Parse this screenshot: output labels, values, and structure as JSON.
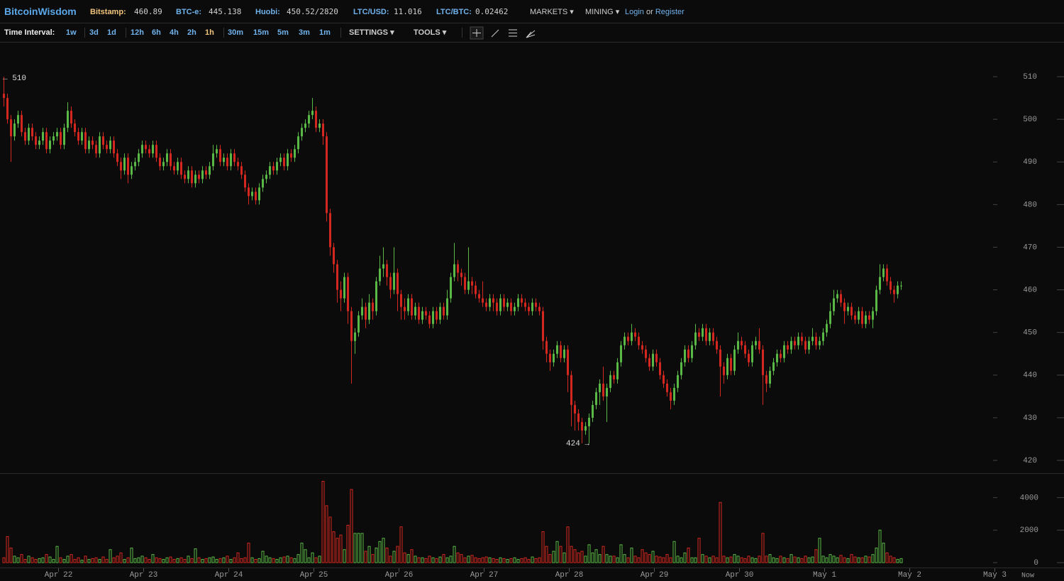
{
  "header": {
    "brand": "BitcoinWisdom",
    "tickers": [
      {
        "label": "Bitstamp:",
        "value": "460.89"
      },
      {
        "label": "BTC-e:",
        "value": "445.138"
      },
      {
        "label": "Huobi:",
        "value": "450.52/2820"
      },
      {
        "label": "LTC/USD:",
        "value": "11.016"
      },
      {
        "label": "LTC/BTC:",
        "value": "0.02462"
      }
    ],
    "menus": [
      "MARKETS",
      "MINING"
    ],
    "login": "Login",
    "or": "or",
    "register": "Register"
  },
  "toolbar": {
    "label": "Time Interval:",
    "intervals": [
      "1w",
      "3d",
      "1d",
      "12h",
      "6h",
      "4h",
      "2h",
      "1h",
      "30m",
      "15m",
      "5m",
      "3m",
      "1m"
    ],
    "active_interval": "1h",
    "settings": "SETTINGS",
    "tools": "TOOLS"
  },
  "chart_data": {
    "type": "candlestick",
    "up_color": "#5ab846",
    "down_color": "#d4271f",
    "high_marker": "← 510",
    "low_marker": "424 →",
    "now_label": "Now",
    "xlim": [
      -1,
      299
    ],
    "xticks": [
      {
        "value": 15.5,
        "label": "Apr 22"
      },
      {
        "value": 39.5,
        "label": "Apr 23"
      },
      {
        "value": 63.5,
        "label": "Apr 24"
      },
      {
        "value": 87.5,
        "label": "Apr 25"
      },
      {
        "value": 111.5,
        "label": "Apr 26"
      },
      {
        "value": 135.5,
        "label": "Apr 27"
      },
      {
        "value": 159.5,
        "label": "Apr 28"
      },
      {
        "value": 183.5,
        "label": "Apr 29"
      },
      {
        "value": 207.5,
        "label": "Apr 30"
      },
      {
        "value": 231.5,
        "label": "May 1"
      },
      {
        "value": 255.5,
        "label": "May 2"
      },
      {
        "value": 279.5,
        "label": "May 3"
      }
    ],
    "ylim": [
      417,
      518
    ],
    "yticks": [
      420,
      430,
      440,
      450,
      460,
      470,
      480,
      490,
      500,
      510
    ],
    "volume_ylim": [
      -300,
      5500
    ],
    "volume_ticks": [
      0,
      2000,
      4000
    ],
    "open": [
      506,
      505,
      500,
      496,
      499,
      501,
      497,
      495,
      498,
      496,
      494,
      495,
      497,
      493,
      495,
      496,
      497,
      494,
      498,
      502,
      499,
      497,
      495,
      497,
      493,
      495,
      494,
      492,
      496,
      494,
      493,
      495,
      492,
      490,
      488,
      491,
      487,
      489,
      490,
      492,
      494,
      493,
      492,
      494,
      491,
      489,
      490,
      492,
      489,
      488,
      490,
      487,
      486,
      488,
      485,
      487,
      486,
      488,
      487,
      489,
      492,
      493,
      490,
      491,
      489,
      492,
      490,
      489,
      487,
      484,
      482,
      483,
      481,
      484,
      486,
      487,
      489,
      488,
      490,
      491,
      489,
      492,
      491,
      493,
      496,
      498,
      499,
      501,
      502,
      498,
      499,
      496,
      478,
      470,
      466,
      460,
      458,
      463,
      455,
      448,
      450,
      454,
      456,
      453,
      457,
      455,
      462,
      465,
      466,
      463,
      460,
      464,
      459,
      456,
      455,
      458,
      454,
      456,
      453,
      455,
      454,
      452,
      455,
      453,
      456,
      454,
      458,
      463,
      466,
      464,
      463,
      460,
      462,
      461,
      459,
      458,
      457,
      456,
      458,
      457,
      455,
      458,
      456,
      457,
      455,
      456,
      458,
      457,
      456,
      455,
      457,
      456,
      455,
      448,
      445,
      443,
      445,
      447,
      444,
      446,
      440,
      433,
      431,
      429,
      427,
      428,
      430,
      433,
      436,
      438,
      435,
      437,
      440,
      439,
      443,
      447,
      449,
      448,
      450,
      449,
      447,
      446,
      444,
      442,
      445,
      443,
      440,
      438,
      436,
      434,
      437,
      440,
      443,
      446,
      444,
      447,
      450,
      449,
      451,
      448,
      450,
      448,
      446,
      442,
      440,
      444,
      441,
      446,
      448,
      447,
      445,
      443,
      447,
      448,
      446,
      440,
      438,
      441,
      443,
      445,
      444,
      447,
      446,
      448,
      447,
      449,
      448,
      446,
      448,
      449,
      447,
      448,
      450,
      452,
      455,
      458,
      459,
      457,
      455,
      456,
      454,
      453,
      455,
      452,
      454,
      453,
      455,
      460,
      463,
      465,
      462,
      460,
      459,
      461
    ],
    "high": [
      510,
      506,
      501,
      500,
      502,
      502,
      498,
      499,
      499,
      497,
      496,
      498,
      498,
      496,
      497,
      498,
      498,
      499,
      504,
      503,
      500,
      498,
      498,
      498,
      496,
      496,
      495,
      497,
      497,
      495,
      496,
      496,
      493,
      491,
      492,
      492,
      490,
      491,
      493,
      495,
      495,
      494,
      495,
      495,
      492,
      491,
      493,
      493,
      490,
      491,
      491,
      488,
      489,
      489,
      488,
      488,
      489,
      489,
      490,
      494,
      494,
      494,
      492,
      492,
      493,
      493,
      491,
      490,
      488,
      485,
      484,
      484,
      485,
      487,
      488,
      490,
      490,
      491,
      492,
      492,
      493,
      493,
      494,
      497,
      499,
      500,
      502,
      505,
      503,
      500,
      500,
      497,
      479,
      471,
      467,
      462,
      464,
      464,
      456,
      451,
      455,
      458,
      457,
      459,
      458,
      463,
      468,
      470,
      467,
      464,
      470,
      465,
      460,
      458,
      459,
      459,
      457,
      457,
      456,
      456,
      455,
      456,
      456,
      457,
      457,
      460,
      464,
      471,
      467,
      465,
      464,
      470,
      463,
      462,
      460,
      462,
      458,
      459,
      459,
      458,
      459,
      459,
      458,
      458,
      457,
      459,
      459,
      458,
      457,
      458,
      458,
      457,
      456,
      449,
      446,
      446,
      448,
      448,
      447,
      447,
      441,
      434,
      432,
      430,
      429,
      431,
      434,
      437,
      439,
      442,
      438,
      441,
      441,
      444,
      448,
      450,
      450,
      452,
      451,
      450,
      448,
      447,
      445,
      446,
      446,
      444,
      441,
      439,
      437,
      438,
      441,
      444,
      447,
      447,
      448,
      452,
      451,
      452,
      452,
      451,
      451,
      449,
      447,
      443,
      445,
      445,
      447,
      450,
      449,
      448,
      446,
      448,
      449,
      451,
      447,
      441,
      442,
      444,
      446,
      446,
      448,
      448,
      449,
      449,
      450,
      450,
      449,
      449,
      451,
      450,
      449,
      451,
      453,
      457,
      460,
      460,
      460,
      458,
      457,
      457,
      455,
      456,
      456,
      455,
      455,
      456,
      461,
      466,
      466,
      466,
      463,
      461,
      462,
      462
    ],
    "low": [
      503,
      499,
      490,
      495,
      498,
      496,
      494,
      494,
      495,
      493,
      493,
      494,
      492,
      492,
      494,
      495,
      493,
      493,
      497,
      498,
      496,
      494,
      494,
      492,
      492,
      493,
      491,
      491,
      493,
      492,
      492,
      491,
      489,
      486,
      487,
      485,
      486,
      488,
      489,
      491,
      492,
      491,
      491,
      490,
      488,
      488,
      489,
      488,
      487,
      487,
      486,
      485,
      485,
      484,
      484,
      485,
      485,
      486,
      486,
      488,
      491,
      489,
      489,
      488,
      488,
      489,
      488,
      486,
      483,
      480,
      481,
      480,
      480,
      483,
      485,
      486,
      487,
      487,
      489,
      488,
      488,
      490,
      490,
      492,
      495,
      497,
      498,
      500,
      497,
      497,
      494,
      476,
      468,
      464,
      457,
      455,
      457,
      452,
      438,
      445,
      449,
      453,
      451,
      452,
      453,
      454,
      461,
      463,
      461,
      458,
      459,
      455,
      453,
      453,
      454,
      453,
      453,
      452,
      452,
      453,
      451,
      451,
      452,
      452,
      453,
      453,
      457,
      462,
      462,
      461,
      459,
      459,
      459,
      458,
      457,
      456,
      455,
      455,
      455,
      454,
      454,
      455,
      455,
      454,
      454,
      455,
      456,
      455,
      454,
      454,
      455,
      454,
      446,
      443,
      441,
      442,
      444,
      443,
      443,
      436,
      428,
      427,
      427,
      424,
      426,
      424,
      429,
      432,
      433,
      434,
      429,
      436,
      438,
      438,
      442,
      446,
      447,
      447,
      448,
      446,
      445,
      443,
      441,
      441,
      442,
      439,
      437,
      435,
      432,
      433,
      436,
      439,
      442,
      443,
      443,
      446,
      448,
      448,
      447,
      447,
      447,
      445,
      435,
      438,
      439,
      440,
      440,
      445,
      446,
      444,
      442,
      442,
      446,
      445,
      433,
      436,
      437,
      440,
      442,
      443,
      443,
      445,
      445,
      446,
      446,
      447,
      445,
      445,
      447,
      446,
      446,
      447,
      449,
      451,
      454,
      457,
      456,
      452,
      454,
      453,
      452,
      452,
      451,
      451,
      452,
      451,
      454,
      459,
      462,
      461,
      459,
      457,
      458,
      460
    ],
    "close": [
      505,
      500,
      496,
      499,
      501,
      497,
      495,
      498,
      496,
      494,
      495,
      497,
      493,
      495,
      496,
      497,
      494,
      498,
      502,
      499,
      497,
      495,
      497,
      493,
      495,
      494,
      492,
      496,
      494,
      493,
      495,
      492,
      490,
      488,
      491,
      487,
      489,
      490,
      492,
      494,
      493,
      492,
      494,
      491,
      489,
      490,
      492,
      489,
      488,
      490,
      487,
      486,
      488,
      485,
      487,
      486,
      488,
      487,
      489,
      492,
      493,
      490,
      491,
      489,
      492,
      490,
      489,
      487,
      484,
      482,
      483,
      481,
      484,
      486,
      487,
      489,
      488,
      490,
      491,
      489,
      492,
      491,
      493,
      496,
      498,
      499,
      501,
      502,
      498,
      499,
      496,
      478,
      470,
      466,
      460,
      458,
      463,
      455,
      448,
      450,
      454,
      456,
      453,
      457,
      455,
      462,
      465,
      466,
      463,
      460,
      464,
      459,
      456,
      455,
      458,
      454,
      456,
      453,
      455,
      454,
      452,
      455,
      453,
      456,
      454,
      458,
      463,
      466,
      464,
      463,
      460,
      462,
      461,
      459,
      458,
      457,
      456,
      458,
      457,
      455,
      458,
      456,
      457,
      455,
      456,
      458,
      457,
      456,
      455,
      457,
      456,
      455,
      448,
      445,
      443,
      445,
      447,
      444,
      446,
      440,
      433,
      431,
      429,
      427,
      428,
      430,
      433,
      436,
      438,
      435,
      437,
      440,
      439,
      443,
      447,
      449,
      448,
      450,
      449,
      447,
      446,
      444,
      442,
      445,
      443,
      440,
      438,
      436,
      434,
      437,
      440,
      443,
      446,
      444,
      447,
      450,
      449,
      451,
      448,
      450,
      448,
      446,
      442,
      440,
      444,
      441,
      446,
      448,
      447,
      445,
      443,
      447,
      448,
      446,
      440,
      438,
      441,
      443,
      445,
      444,
      447,
      446,
      448,
      447,
      449,
      448,
      446,
      448,
      449,
      447,
      448,
      450,
      452,
      455,
      458,
      459,
      457,
      455,
      456,
      454,
      453,
      455,
      452,
      454,
      453,
      455,
      460,
      463,
      465,
      462,
      460,
      459,
      461,
      461
    ],
    "volume": [
      300,
      1600,
      900,
      400,
      300,
      500,
      200,
      400,
      300,
      200,
      250,
      300,
      500,
      350,
      200,
      1000,
      300,
      200,
      400,
      500,
      200,
      300,
      150,
      400,
      200,
      250,
      300,
      200,
      350,
      200,
      800,
      300,
      400,
      600,
      200,
      300,
      900,
      250,
      300,
      400,
      300,
      200,
      500,
      300,
      250,
      200,
      300,
      350,
      200,
      250,
      300,
      200,
      400,
      250,
      850,
      300,
      200,
      250,
      300,
      350,
      200,
      250,
      300,
      400,
      200,
      300,
      600,
      250,
      300,
      1200,
      300,
      200,
      250,
      700,
      400,
      300,
      250,
      200,
      300,
      350,
      400,
      300,
      250,
      500,
      1200,
      800,
      300,
      600,
      300,
      400,
      5000,
      3500,
      2800,
      1900,
      1500,
      1700,
      800,
      2300,
      4500,
      1800,
      1800,
      1800,
      700,
      1000,
      500,
      900,
      1300,
      1500,
      900,
      400,
      700,
      1000,
      2200,
      600,
      500,
      800,
      400,
      300,
      300,
      250,
      400,
      300,
      250,
      350,
      500,
      300,
      400,
      1000,
      600,
      500,
      300,
      400,
      450,
      300,
      250,
      300,
      350,
      300,
      250,
      200,
      300,
      250,
      200,
      250,
      300,
      200,
      250,
      300,
      200,
      350,
      250,
      300,
      1900,
      1000,
      500,
      700,
      1300,
      1000,
      600,
      2200,
      1000,
      800,
      600,
      700,
      400,
      1100,
      600,
      800,
      500,
      1000,
      500,
      400,
      400,
      300,
      1100,
      500,
      300,
      900,
      400,
      300,
      800,
      600,
      500,
      700,
      400,
      350,
      300,
      500,
      300,
      1300,
      400,
      300,
      600,
      900,
      300,
      300,
      1500,
      500,
      400,
      300,
      400,
      300,
      3700,
      400,
      300,
      350,
      500,
      400,
      300,
      250,
      400,
      300,
      250,
      400,
      1800,
      400,
      500,
      300,
      250,
      400,
      300,
      250,
      500,
      350,
      300,
      250,
      400,
      300,
      350,
      800,
      1500,
      400,
      300,
      500,
      400,
      300,
      450,
      300,
      250,
      500,
      350,
      300,
      300,
      400,
      350,
      500,
      900,
      2000,
      1200,
      600,
      400,
      300,
      200,
      250
    ]
  }
}
